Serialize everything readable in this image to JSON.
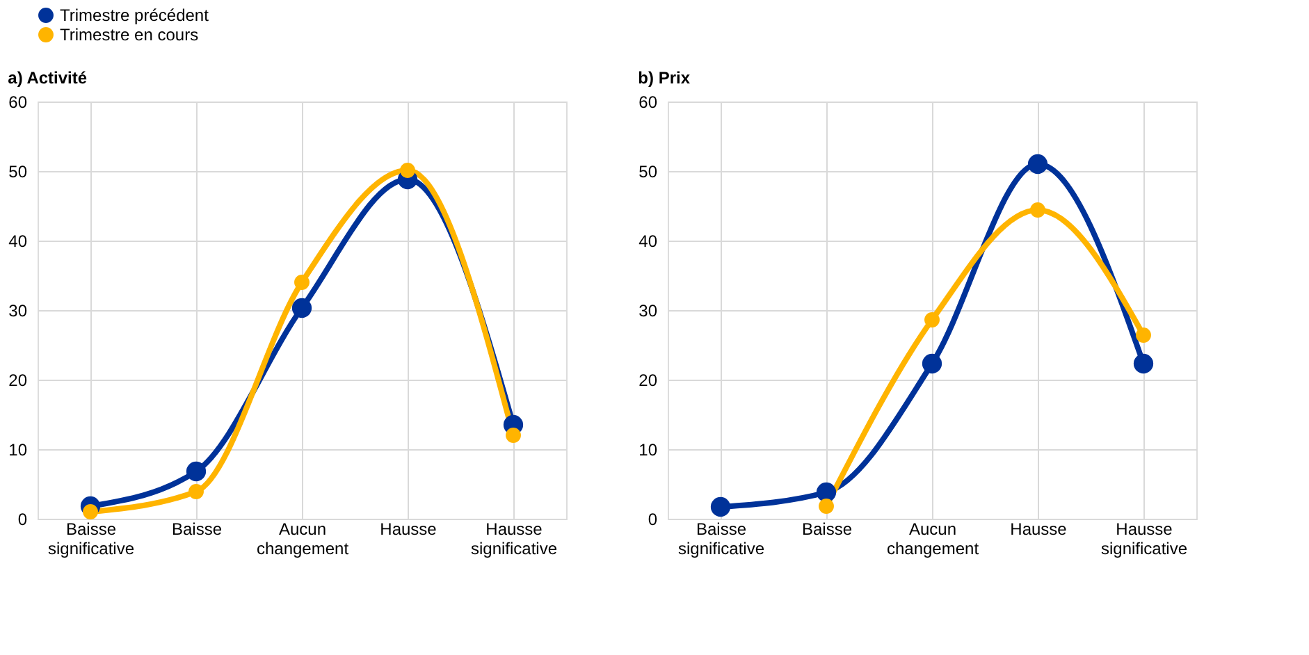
{
  "chart_data": [
    {
      "type": "line",
      "title": "a) Activité",
      "categories": [
        "Baisse significative",
        "Baisse",
        "Aucun changement",
        "Hausse",
        "Hausse significative"
      ],
      "series": [
        {
          "name": "Trimestre précédent",
          "color": "#003299",
          "values": [
            1.8,
            6.8,
            30.3,
            48.8,
            13.5
          ]
        },
        {
          "name": "Trimestre en cours",
          "color": "#ffb400",
          "values": [
            1.0,
            3.9,
            34.0,
            50.1,
            12.0
          ]
        }
      ],
      "ylim": [
        0,
        60
      ],
      "yticks": [
        0,
        10,
        20,
        30,
        40,
        50,
        60
      ],
      "grid": true,
      "legend": "top left",
      "marker": "circle",
      "line_style": "solid"
    },
    {
      "type": "line",
      "title": "b) Prix",
      "categories": [
        "Baisse significative",
        "Baisse",
        "Aucun changement",
        "Hausse",
        "Hausse significative"
      ],
      "series": [
        {
          "name": "Trimestre précédent",
          "color": "#003299",
          "values": [
            1.7,
            3.8,
            22.3,
            51.0,
            22.3
          ]
        },
        {
          "name": "Trimestre en cours",
          "color": "#ffb400",
          "values": [
            null,
            1.8,
            28.6,
            44.4,
            26.4
          ]
        }
      ],
      "ylim": [
        0,
        60
      ],
      "yticks": [
        0,
        10,
        20,
        30,
        40,
        50,
        60
      ],
      "grid": true,
      "marker": "circle",
      "line_style": "solid"
    }
  ]
}
